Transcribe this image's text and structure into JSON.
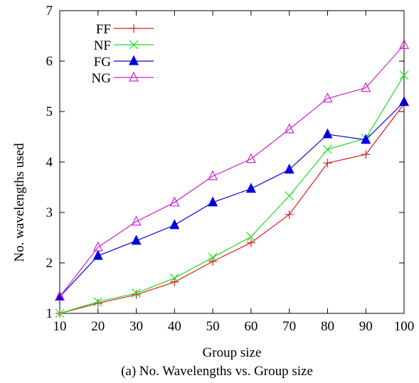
{
  "chart_data": {
    "type": "line",
    "title": "",
    "xlabel": "Group size",
    "ylabel": "No. wavelengths used",
    "caption": "(a) No. Wavelengths vs. Group size",
    "x": [
      10,
      20,
      30,
      40,
      50,
      60,
      70,
      80,
      90,
      100
    ],
    "xlim": [
      10,
      100
    ],
    "ylim": [
      1,
      7
    ],
    "xticks": [
      "10",
      "20",
      "30",
      "40",
      "50",
      "60",
      "70",
      "80",
      "90",
      "100"
    ],
    "yticks": [
      "1",
      "2",
      "3",
      "4",
      "5",
      "6",
      "7"
    ],
    "grid": false,
    "legend_position": "top-left",
    "series": [
      {
        "name": "FF",
        "marker": "plus",
        "color": "#e41a1c",
        "values": [
          1.0,
          1.2,
          1.37,
          1.62,
          2.03,
          2.4,
          2.96,
          3.98,
          4.15,
          5.15
        ]
      },
      {
        "name": "NF",
        "marker": "cross",
        "color": "#22dd22",
        "values": [
          1.0,
          1.23,
          1.4,
          1.7,
          2.11,
          2.52,
          3.33,
          4.25,
          4.47,
          5.72
        ]
      },
      {
        "name": "FG",
        "marker": "filled-triangle",
        "color": "#0000dd",
        "values": [
          1.33,
          2.14,
          2.44,
          2.75,
          3.2,
          3.47,
          3.85,
          4.55,
          4.44,
          5.19
        ]
      },
      {
        "name": "NG",
        "marker": "open-triangle",
        "color": "#cc22cc",
        "values": [
          1.33,
          2.31,
          2.82,
          3.2,
          3.72,
          4.06,
          4.65,
          5.26,
          5.47,
          6.32
        ]
      }
    ]
  }
}
